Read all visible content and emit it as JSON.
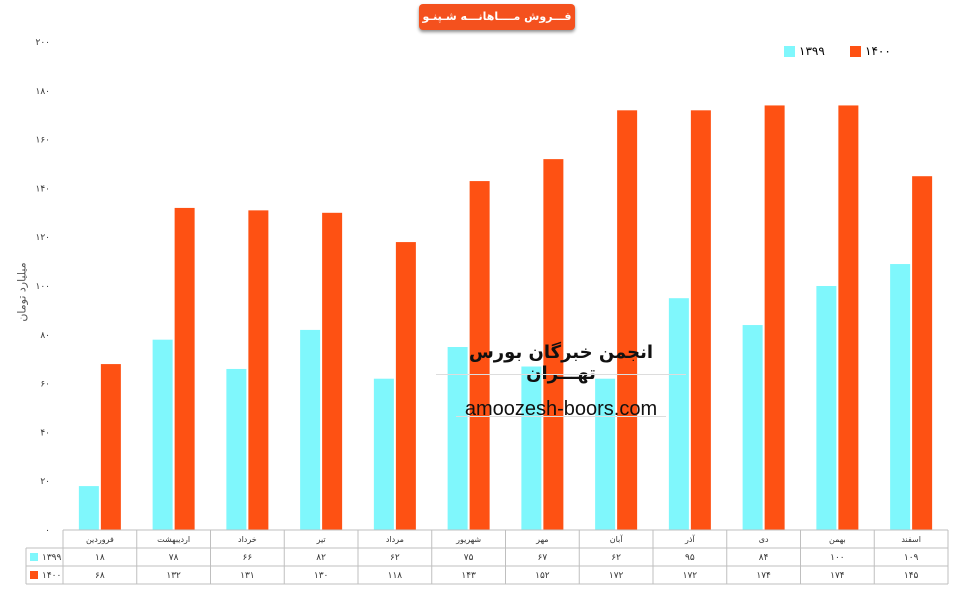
{
  "title": "فـــروش مــــاهانـــه شـپنـو",
  "watermark": {
    "title": "انجمن خبرگان بورس تهـــران",
    "url": "amoozesh-boors.com"
  },
  "chart_data": {
    "type": "bar",
    "ylabel": "میلیارد تومان",
    "ylim": [
      0,
      200
    ],
    "yticks": [
      "۰",
      "۲۰",
      "۴۰",
      "۶۰",
      "۸۰",
      "۱۰۰",
      "۱۲۰",
      "۱۴۰",
      "۱۶۰",
      "۱۸۰",
      "۲۰۰"
    ],
    "ytick_values": [
      0,
      20,
      40,
      60,
      80,
      100,
      120,
      140,
      160,
      180,
      200
    ],
    "categories": [
      "فروردین",
      "اردیبهشت",
      "خرداد",
      "تیر",
      "مرداد",
      "شهریور",
      "مهر",
      "آبان",
      "آذر",
      "دی",
      "بهمن",
      "اسفند"
    ],
    "series": [
      {
        "name": "۱۳۹۹",
        "color": "#7ff7fc",
        "values": [
          18,
          78,
          66,
          82,
          62,
          75,
          67,
          62,
          95,
          84,
          100,
          109
        ],
        "labels": [
          "۱۸",
          "۷۸",
          "۶۶",
          "۸۲",
          "۶۲",
          "۷۵",
          "۶۷",
          "۶۲",
          "۹۵",
          "۸۴",
          "۱۰۰",
          "۱۰۹"
        ]
      },
      {
        "name": "۱۴۰۰",
        "color": "#fe5113",
        "values": [
          68,
          132,
          131,
          130,
          118,
          143,
          152,
          172,
          172,
          174,
          174,
          145
        ],
        "labels": [
          "۶۸",
          "۱۳۲",
          "۱۳۱",
          "۱۳۰",
          "۱۱۸",
          "۱۴۳",
          "۱۵۲",
          "۱۷۲",
          "۱۷۲",
          "۱۷۴",
          "۱۷۴",
          "۱۴۵"
        ]
      }
    ],
    "legend": "top-right",
    "data_table": true
  }
}
